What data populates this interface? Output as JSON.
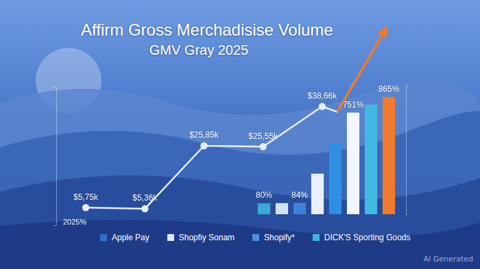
{
  "chart_data": [
    {
      "type": "line",
      "title": "Affirm Gross Merchadisise Volume",
      "subtitle": "GMV Gray 2025",
      "categories": [
        null,
        null,
        null,
        null,
        null
      ],
      "values": [
        5.75,
        5.36,
        25.85,
        25.55,
        38.66
      ],
      "value_labels": [
        "$5,75k",
        "$5,36k",
        "$25,85k",
        "$25,55k",
        "$38,66k"
      ],
      "color": "#e6edf8",
      "marker": "circle",
      "line_style": "solid",
      "ylim": [
        0,
        45
      ],
      "yticks": [
        0,
        45
      ],
      "grid": false,
      "tick_labels": false,
      "data_labels": true
    },
    {
      "type": "bar",
      "categories": [
        null,
        null,
        null,
        null,
        null,
        null,
        null,
        null
      ],
      "values": [
        80,
        82,
        84,
        300,
        520,
        751,
        810,
        865
      ],
      "value_labels": [
        "80%",
        null,
        "84%",
        null,
        null,
        "751%",
        null,
        "865%"
      ],
      "colors": [
        "#3aa9d3",
        "#d3e2f6",
        "#3d82d6",
        "#e9eff9",
        "#2f8fe3",
        "#f3f6fb",
        "#41b9e2",
        "#f07a2e"
      ],
      "ylim": [
        0,
        950
      ],
      "yticks": [
        0,
        950
      ],
      "grid": false,
      "tick_labels": false,
      "data_labels": true
    }
  ],
  "annotation": "2025%",
  "legend_items": [
    {
      "label": "Apple Pay",
      "color": "#2f6fc8"
    },
    {
      "label": "Shopfiy Sonam",
      "color": "#dfe8f6"
    },
    {
      "label": "Shopify*",
      "color": "#4b92e3"
    },
    {
      "label": "DICK'S Sporting Goods",
      "color": "#3fb5dd"
    }
  ],
  "watermark": "AI Generated"
}
